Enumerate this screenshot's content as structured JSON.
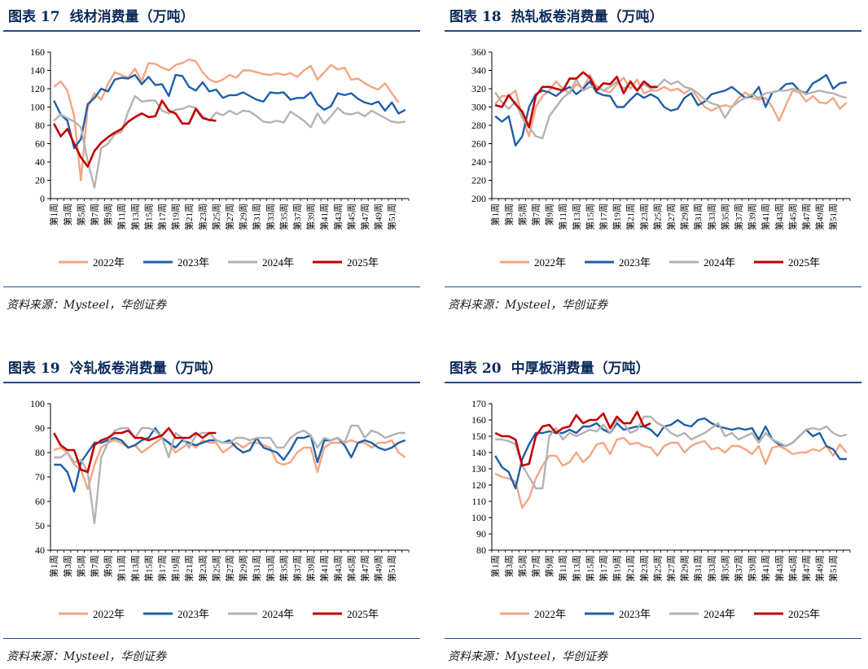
{
  "source_label": "资料来源：Mysteel，华创证券",
  "week_labels": [
    "第1周",
    "第3周",
    "第5周",
    "第7周",
    "第9周",
    "第11周",
    "第13周",
    "第15周",
    "第17周",
    "第19周",
    "第21周",
    "第23周",
    "第25周",
    "第27周",
    "第29周",
    "第31周",
    "第33周",
    "第35周",
    "第37周",
    "第39周",
    "第41周",
    "第43周",
    "第45周",
    "第47周",
    "第49周",
    "第51周"
  ],
  "colors": {
    "2022": "#f4a582",
    "2023": "#1f5fa8",
    "2024": "#b3b3b3",
    "2025": "#c00000",
    "title": "#0b2a5a",
    "rule": "#1f4e8c"
  },
  "chart_data": [
    {
      "type": "line",
      "fig_no": "图表 17",
      "title": "线材消费量（万吨）",
      "x_label_step": 2,
      "ylim": [
        0,
        160
      ],
      "yticks": [
        0,
        20,
        40,
        60,
        80,
        100,
        120,
        140,
        160
      ],
      "series": [
        {
          "name": "2022年",
          "color_key": "2022",
          "values": [
            122,
            128,
            118,
            90,
            20,
            100,
            115,
            108,
            125,
            138,
            135,
            132,
            142,
            128,
            148,
            147,
            143,
            140,
            146,
            148,
            152,
            150,
            138,
            130,
            127,
            130,
            135,
            132,
            140,
            140,
            138,
            136,
            135,
            137,
            135,
            137,
            133,
            140,
            145,
            130,
            138,
            146,
            141,
            143,
            130,
            131,
            126,
            122,
            119,
            126,
            115,
            105
          ]
        },
        {
          "name": "2023年",
          "color_key": "2023",
          "values": [
            107,
            92,
            85,
            55,
            65,
            103,
            110,
            120,
            117,
            130,
            132,
            131,
            135,
            125,
            133,
            124,
            125,
            112,
            135,
            134,
            122,
            118,
            127,
            117,
            119,
            110,
            113,
            113,
            116,
            112,
            108,
            106,
            116,
            115,
            116,
            108,
            110,
            110,
            116,
            103,
            97,
            101,
            115,
            113,
            115,
            109,
            105,
            103,
            106,
            96,
            105,
            93,
            97
          ]
        },
        {
          "name": "2024年",
          "color_key": "2024",
          "values": [
            85,
            92,
            88,
            84,
            78,
            41,
            12,
            55,
            60,
            70,
            73,
            95,
            112,
            106,
            107,
            107,
            96,
            93,
            97,
            98,
            101,
            99,
            90,
            85,
            94,
            91,
            96,
            92,
            96,
            95,
            90,
            84,
            83,
            85,
            83,
            95,
            90,
            85,
            78,
            93,
            82,
            90,
            99,
            93,
            92,
            94,
            90,
            96,
            92,
            88,
            84,
            83,
            84
          ]
        },
        {
          "name": "2025年",
          "color_key": "2025",
          "values": [
            82,
            68,
            76,
            60,
            45,
            35,
            52,
            61,
            67,
            72,
            76,
            84,
            89,
            93,
            89,
            90,
            107,
            96,
            93,
            82,
            82,
            98,
            88,
            86,
            85
          ]
        }
      ]
    },
    {
      "type": "line",
      "fig_no": "图表 18",
      "title": "热轧板卷消费量（万吨）",
      "x_label_step": 2,
      "ylim": [
        200,
        360
      ],
      "yticks": [
        200,
        220,
        240,
        260,
        280,
        300,
        320,
        340,
        360
      ],
      "series": [
        {
          "name": "2022年",
          "color_key": "2022",
          "values": [
            303,
            312,
            312,
            318,
            290,
            268,
            300,
            312,
            318,
            328,
            320,
            315,
            325,
            320,
            335,
            322,
            318,
            316,
            325,
            332,
            320,
            330,
            315,
            318,
            318,
            322,
            318,
            320,
            315,
            320,
            310,
            300,
            296,
            300,
            302,
            300,
            310,
            316,
            310,
            308,
            310,
            300,
            285,
            302,
            318,
            316,
            306,
            312,
            305,
            304,
            310,
            298,
            305
          ]
        },
        {
          "name": "2023年",
          "color_key": "2023",
          "values": [
            290,
            284,
            290,
            258,
            268,
            300,
            314,
            318,
            316,
            312,
            318,
            322,
            314,
            320,
            328,
            316,
            313,
            312,
            300,
            300,
            308,
            315,
            310,
            314,
            310,
            300,
            296,
            298,
            310,
            315,
            302,
            306,
            314,
            316,
            318,
            322,
            316,
            310,
            312,
            322,
            300,
            316,
            318,
            325,
            326,
            318,
            315,
            326,
            330,
            335,
            320,
            326,
            327
          ]
        },
        {
          "name": "2024年",
          "color_key": "2024",
          "values": [
            316,
            305,
            298,
            306,
            288,
            278,
            268,
            266,
            290,
            300,
            310,
            316,
            330,
            318,
            322,
            323,
            318,
            322,
            328,
            320,
            326,
            318,
            325,
            320,
            322,
            330,
            325,
            328,
            322,
            320,
            315,
            308,
            304,
            302,
            288,
            300,
            306,
            310,
            314,
            310,
            315,
            316,
            318,
            318,
            320,
            318,
            314,
            316,
            318,
            316,
            315,
            312,
            310
          ]
        },
        {
          "name": "2025年",
          "color_key": "2025",
          "values": [
            302,
            300,
            313,
            303,
            295,
            278,
            312,
            322,
            322,
            320,
            318,
            331,
            331,
            338,
            332,
            318,
            326,
            325,
            333,
            315,
            328,
            318,
            328,
            322,
            322
          ]
        }
      ]
    },
    {
      "type": "line",
      "fig_no": "图表 19",
      "title": "冷轧板卷消费量（万吨）",
      "x_label_step": 2,
      "ylim": [
        40,
        100
      ],
      "yticks": [
        40,
        50,
        60,
        70,
        80,
        90,
        100
      ],
      "series": [
        {
          "name": "2022年",
          "color_key": "2022",
          "values": [
            81,
            82,
            80,
            75,
            73,
            65,
            75,
            82,
            84,
            85,
            84,
            82,
            83,
            80,
            82,
            84,
            86,
            84,
            80,
            82,
            84,
            82,
            85,
            84,
            84,
            80,
            82,
            84,
            82,
            84,
            84,
            83,
            82,
            76,
            75,
            76,
            80,
            82,
            82,
            72,
            82,
            84,
            84,
            84,
            85,
            84,
            84,
            82,
            84,
            84,
            85,
            80,
            78
          ]
        },
        {
          "name": "2023年",
          "color_key": "2023",
          "values": [
            75,
            75,
            72,
            64,
            76,
            80,
            84,
            84,
            85,
            86,
            85,
            82,
            83,
            85,
            86,
            90,
            86,
            84,
            82,
            85,
            84,
            83,
            84,
            85,
            85,
            84,
            85,
            82,
            80,
            81,
            86,
            82,
            81,
            80,
            77,
            81,
            86,
            86,
            87,
            76,
            85,
            85,
            86,
            83,
            78,
            84,
            85,
            84,
            82,
            81,
            82,
            84,
            85
          ]
        },
        {
          "name": "2024年",
          "color_key": "2024",
          "values": [
            78,
            78,
            80,
            76,
            77,
            72,
            51,
            78,
            84,
            89,
            90,
            90,
            86,
            90,
            90,
            89,
            86,
            78,
            88,
            86,
            82,
            87,
            88,
            88,
            85,
            84,
            84,
            86,
            86,
            85,
            86,
            86,
            86,
            82,
            82,
            86,
            88,
            89,
            87,
            82,
            86,
            85,
            86,
            84,
            91,
            91,
            86,
            89,
            88,
            86,
            87,
            88,
            88
          ]
        },
        {
          "name": "2025年",
          "color_key": "2025",
          "values": [
            88,
            83,
            81,
            81,
            73,
            72,
            83,
            85,
            86,
            88,
            88,
            89,
            86,
            86,
            85,
            86,
            87,
            90,
            86,
            86,
            86,
            88,
            86,
            88,
            88
          ]
        }
      ]
    },
    {
      "type": "line",
      "fig_no": "图表 20",
      "title": "中厚板消费量（万吨）",
      "x_label_step": 2,
      "ylim": [
        80,
        170
      ],
      "yticks": [
        80,
        90,
        100,
        110,
        120,
        130,
        140,
        150,
        160,
        170
      ],
      "series": [
        {
          "name": "2022年",
          "color_key": "2022",
          "values": [
            127,
            125,
            124,
            122,
            106,
            112,
            124,
            132,
            138,
            138,
            132,
            134,
            140,
            134,
            138,
            145,
            146,
            139,
            148,
            149,
            145,
            146,
            144,
            143,
            138,
            144,
            146,
            146,
            140,
            144,
            146,
            147,
            142,
            143,
            140,
            144,
            144,
            142,
            139,
            144,
            133,
            143,
            144,
            142,
            139,
            140,
            140,
            142,
            141,
            144,
            138,
            145,
            140
          ]
        },
        {
          "name": "2023年",
          "color_key": "2023",
          "values": [
            138,
            131,
            128,
            118,
            136,
            145,
            152,
            152,
            153,
            152,
            152,
            154,
            152,
            156,
            156,
            158,
            154,
            152,
            158,
            154,
            155,
            156,
            156,
            154,
            150,
            156,
            157,
            160,
            157,
            156,
            160,
            161,
            158,
            156,
            155,
            154,
            155,
            154,
            155,
            148,
            156,
            148,
            145,
            144,
            146,
            150,
            154,
            150,
            152,
            144,
            142,
            136,
            136
          ]
        },
        {
          "name": "2024年",
          "color_key": "2024",
          "values": [
            148,
            148,
            147,
            145,
            132,
            125,
            118,
            118,
            150,
            155,
            148,
            152,
            150,
            152,
            154,
            153,
            157,
            152,
            160,
            158,
            152,
            154,
            162,
            162,
            158,
            156,
            152,
            150,
            152,
            148,
            150,
            152,
            155,
            158,
            150,
            152,
            148,
            150,
            152,
            146,
            152,
            148,
            146,
            144,
            146,
            150,
            154,
            155,
            154,
            156,
            152,
            150,
            151
          ]
        },
        {
          "name": "2025年",
          "color_key": "2025",
          "values": [
            152,
            150,
            150,
            148,
            132,
            133,
            150,
            156,
            157,
            152,
            155,
            156,
            163,
            158,
            160,
            160,
            164,
            155,
            162,
            158,
            158,
            165,
            156,
            158
          ]
        }
      ]
    }
  ]
}
